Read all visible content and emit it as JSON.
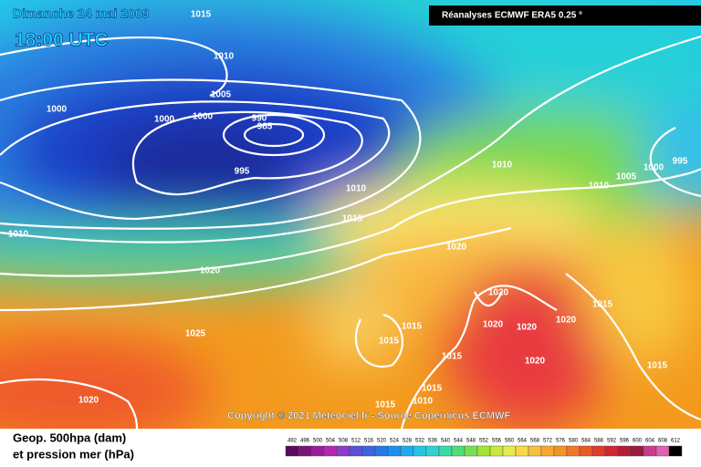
{
  "header": {
    "date": "Dimanche 24 mai 2009",
    "time": "18:00 UTC",
    "source": "Réanalyses ECMWF ERA5 0.25 °"
  },
  "copyright": "Copyright © 2021 Meteociel.fr - Source Copernicus ECMWF",
  "legend": {
    "title_line1": "Geop. 500hpa (dam)",
    "title_line2": "et pression mer (hPa)",
    "scale": [
      492,
      496,
      500,
      504,
      508,
      512,
      516,
      520,
      524,
      528,
      532,
      536,
      540,
      544,
      548,
      552,
      556,
      560,
      564,
      568,
      572,
      576,
      580,
      584,
      588,
      592,
      596,
      600,
      604,
      608,
      612
    ]
  },
  "isobar_labels": [
    "1015",
    "1010",
    "1005",
    "1000",
    "1000",
    "1000",
    "990",
    "985",
    "995",
    "1010",
    "1015",
    "1010",
    "1020",
    "1025",
    "1020",
    "1010",
    "1010",
    "1005",
    "1000",
    "995",
    "1020",
    "1020",
    "1020",
    "1020",
    "1020",
    "1015",
    "1020",
    "1015",
    "1015",
    "1015",
    "1015",
    "1010",
    "1015",
    "1015"
  ]
}
